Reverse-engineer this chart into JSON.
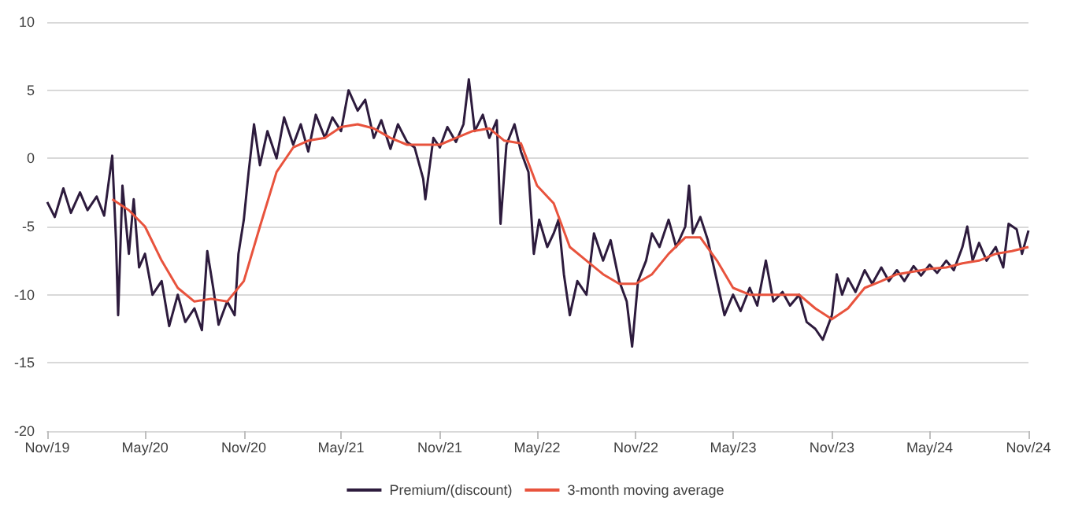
{
  "chart_data": {
    "type": "line",
    "xlim": [
      "2019-11",
      "2024-11"
    ],
    "xticks": [
      {
        "value": "2019-11",
        "label": "Nov/19"
      },
      {
        "value": "2020-05",
        "label": "May/20"
      },
      {
        "value": "2020-11",
        "label": "Nov/20"
      },
      {
        "value": "2021-05",
        "label": "May/21"
      },
      {
        "value": "2021-11",
        "label": "Nov/21"
      },
      {
        "value": "2022-05",
        "label": "May/22"
      },
      {
        "value": "2022-11",
        "label": "Nov/22"
      },
      {
        "value": "2023-05",
        "label": "May/23"
      },
      {
        "value": "2023-11",
        "label": "Nov/23"
      },
      {
        "value": "2024-05",
        "label": "May/24"
      },
      {
        "value": "2024-11",
        "label": "Nov/24"
      }
    ],
    "ylim": [
      -20,
      10
    ],
    "yticks": [
      -20,
      -15,
      -10,
      -5,
      0,
      5,
      10
    ],
    "grid": "y",
    "legend": "bottom",
    "marker": "none",
    "line_style": "solid",
    "series": [
      {
        "name": "Premium/(discount)",
        "color": "#2d1b3d",
        "x": [
          "2019-11-01",
          "2019-11-15",
          "2019-12-01",
          "2019-12-15",
          "2020-01-01",
          "2020-01-15",
          "2020-02-01",
          "2020-02-15",
          "2020-03-01",
          "2020-03-08",
          "2020-03-12",
          "2020-03-20",
          "2020-04-01",
          "2020-04-10",
          "2020-04-20",
          "2020-05-01",
          "2020-05-15",
          "2020-06-01",
          "2020-06-15",
          "2020-07-01",
          "2020-07-15",
          "2020-08-01",
          "2020-08-15",
          "2020-08-25",
          "2020-09-05",
          "2020-09-15",
          "2020-10-01",
          "2020-10-15",
          "2020-10-22",
          "2020-11-01",
          "2020-11-10",
          "2020-11-20",
          "2020-12-01",
          "2020-12-15",
          "2021-01-01",
          "2021-01-15",
          "2021-02-01",
          "2021-02-15",
          "2021-03-01",
          "2021-03-15",
          "2021-04-01",
          "2021-04-15",
          "2021-05-01",
          "2021-05-15",
          "2021-06-01",
          "2021-06-15",
          "2021-07-01",
          "2021-07-15",
          "2021-08-01",
          "2021-08-15",
          "2021-09-01",
          "2021-09-15",
          "2021-10-01",
          "2021-10-05",
          "2021-10-20",
          "2021-11-01",
          "2021-11-15",
          "2021-12-01",
          "2021-12-15",
          "2021-12-25",
          "2022-01-05",
          "2022-01-20",
          "2022-02-01",
          "2022-02-15",
          "2022-02-22",
          "2022-03-05",
          "2022-03-20",
          "2022-04-01",
          "2022-04-15",
          "2022-04-25",
          "2022-05-05",
          "2022-05-20",
          "2022-06-01",
          "2022-06-10",
          "2022-06-20",
          "2022-07-01",
          "2022-07-15",
          "2022-08-01",
          "2022-08-15",
          "2022-09-01",
          "2022-09-15",
          "2022-10-01",
          "2022-10-15",
          "2022-10-25",
          "2022-11-05",
          "2022-11-20",
          "2022-12-01",
          "2022-12-15",
          "2023-01-01",
          "2023-01-15",
          "2023-02-01",
          "2023-02-08",
          "2023-02-15",
          "2023-03-01",
          "2023-03-15",
          "2023-04-01",
          "2023-04-15",
          "2023-05-01",
          "2023-05-15",
          "2023-06-01",
          "2023-06-15",
          "2023-07-01",
          "2023-07-15",
          "2023-08-01",
          "2023-08-15",
          "2023-09-01",
          "2023-09-15",
          "2023-10-01",
          "2023-10-15",
          "2023-11-01",
          "2023-11-10",
          "2023-11-20",
          "2023-12-01",
          "2023-12-15",
          "2024-01-01",
          "2024-01-15",
          "2024-02-01",
          "2024-02-15",
          "2024-03-01",
          "2024-03-15",
          "2024-04-01",
          "2024-04-15",
          "2024-05-01",
          "2024-05-15",
          "2024-06-01",
          "2024-06-15",
          "2024-07-01",
          "2024-07-10",
          "2024-07-20",
          "2024-08-01",
          "2024-08-15",
          "2024-09-01",
          "2024-09-15",
          "2024-09-25",
          "2024-10-10",
          "2024-10-20",
          "2024-11-01"
        ],
        "values": [
          -3.2,
          -4.3,
          -2.2,
          -4,
          -2.5,
          -3.8,
          -2.8,
          -4.2,
          0.2,
          -6,
          -11.5,
          -2,
          -7,
          -3,
          -8,
          -7,
          -10,
          -9,
          -12.3,
          -10,
          -12,
          -11,
          -12.6,
          -6.8,
          -9.5,
          -12.2,
          -10.5,
          -11.5,
          -7,
          -4.5,
          -1,
          2.5,
          -0.5,
          2,
          0,
          3,
          1,
          2.5,
          0.5,
          3.2,
          1.5,
          3,
          2,
          5,
          3.5,
          4.3,
          1.5,
          2.8,
          0.7,
          2.5,
          1.2,
          0.8,
          -1.5,
          -3,
          1.5,
          0.8,
          2.3,
          1.2,
          2.5,
          5.8,
          2,
          3.2,
          1.5,
          2.8,
          -4.8,
          1,
          2.5,
          0.5,
          -1,
          -7,
          -4.5,
          -6.5,
          -5.5,
          -4.5,
          -8.5,
          -11.5,
          -9,
          -10,
          -5.5,
          -7.5,
          -6,
          -9,
          -10.5,
          -13.8,
          -9,
          -7.5,
          -5.5,
          -6.5,
          -4.5,
          -6.5,
          -5,
          -2,
          -5.5,
          -4.3,
          -6,
          -9,
          -11.5,
          -10,
          -11.2,
          -9.5,
          -10.8,
          -7.5,
          -10.5,
          -9.8,
          -10.8,
          -10,
          -12,
          -12.5,
          -13.3,
          -11.5,
          -8.5,
          -10,
          -8.8,
          -9.8,
          -8.2,
          -9.2,
          -8,
          -9,
          -8.2,
          -9,
          -7.9,
          -8.6,
          -7.8,
          -8.4,
          -7.5,
          -8.2,
          -6.5,
          -5,
          -7.5,
          -6.2,
          -7.5,
          -6.5,
          -8,
          -4.8,
          -5.2,
          -7,
          -5.3
        ]
      },
      {
        "name": "3-month moving average",
        "color": "#e8533d",
        "x": [
          "2020-03-01",
          "2020-04-01",
          "2020-05-01",
          "2020-06-01",
          "2020-07-01",
          "2020-08-01",
          "2020-09-01",
          "2020-10-01",
          "2020-11-01",
          "2020-12-01",
          "2021-01-01",
          "2021-02-01",
          "2021-03-01",
          "2021-04-01",
          "2021-05-01",
          "2021-06-01",
          "2021-07-01",
          "2021-08-01",
          "2021-09-01",
          "2021-10-01",
          "2021-11-01",
          "2021-12-01",
          "2022-01-01",
          "2022-02-01",
          "2022-03-01",
          "2022-04-01",
          "2022-05-01",
          "2022-06-01",
          "2022-07-01",
          "2022-08-01",
          "2022-09-01",
          "2022-10-01",
          "2022-11-01",
          "2022-12-01",
          "2023-01-01",
          "2023-02-01",
          "2023-03-01",
          "2023-04-01",
          "2023-05-01",
          "2023-06-01",
          "2023-07-01",
          "2023-08-01",
          "2023-09-01",
          "2023-10-01",
          "2023-11-01",
          "2023-12-01",
          "2024-01-01",
          "2024-02-01",
          "2024-03-01",
          "2024-04-01",
          "2024-05-01",
          "2024-06-01",
          "2024-07-01",
          "2024-08-01",
          "2024-09-01",
          "2024-10-01",
          "2024-11-01"
        ],
        "values": [
          -3,
          -3.8,
          -5,
          -7.5,
          -9.5,
          -10.5,
          -10.3,
          -10.5,
          -9,
          -5,
          -1,
          0.8,
          1.3,
          1.5,
          2.3,
          2.5,
          2.2,
          1.5,
          1,
          1,
          1,
          1.5,
          2,
          2.2,
          1.3,
          1.1,
          -2,
          -3.3,
          -6.5,
          -7.5,
          -8.5,
          -9.2,
          -9.2,
          -8.5,
          -7,
          -5.8,
          -5.8,
          -7.5,
          -9.5,
          -10,
          -10,
          -10,
          -10,
          -11,
          -11.8,
          -11,
          -9.5,
          -9,
          -8.5,
          -8.3,
          -8.1,
          -8,
          -7.7,
          -7.5,
          -7,
          -6.8,
          -6.5
        ]
      }
    ]
  }
}
